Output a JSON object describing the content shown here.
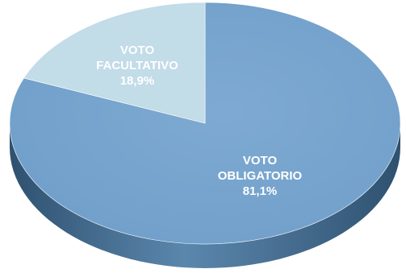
{
  "chart_data": {
    "type": "pie",
    "title": "",
    "style": "3d",
    "slices": [
      {
        "label_lines": [
          "VOTO",
          "OBLIGATORIO",
          "81,1%"
        ],
        "value": 81.1,
        "color": "#6f9ec9",
        "label_color": "#ffffff"
      },
      {
        "label_lines": [
          "VOTO",
          "FACULTATIVO",
          "18,9%"
        ],
        "value": 18.9,
        "color": "#c2dce8",
        "label_color": "#1f2a36"
      }
    ]
  },
  "colors": {
    "side_light": "#5b87ad",
    "side_dark": "#2f5170",
    "background": "#ffffff"
  }
}
